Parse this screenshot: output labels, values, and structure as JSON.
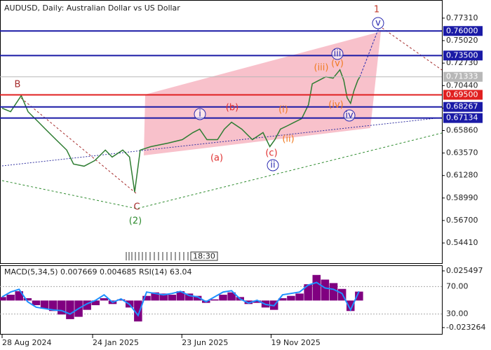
{
  "chart_data": [
    {
      "type": "line",
      "title": "AUDUSD, Daily:  Australian Dollar vs US Dollar",
      "color": "#2e7d32",
      "x": [
        0,
        2,
        4.5,
        6.1,
        8.6,
        10.2,
        12.7,
        15.2,
        16.8,
        19.3,
        21.8,
        24.3,
        25.9,
        28.4,
        30,
        31.2,
        32.5,
        35,
        39.1,
        42.4,
        44.9,
        46.5,
        48.2,
        50.7,
        52.3,
        54,
        56.4,
        58.9,
        61.4,
        63,
        64.2,
        65.5,
        67.2,
        68.8,
        70.5,
        72.1,
        73,
        74.6,
        76.2,
        77.9,
        79.5,
        80.4,
        81.2,
        82,
        82.8,
        83.7,
        84.2
      ],
      "values": [
        0.6814,
        0.6778,
        0.6942,
        0.6778,
        0.6671,
        0.66,
        0.6493,
        0.6387,
        0.6245,
        0.6223,
        0.628,
        0.6387,
        0.6316,
        0.6387,
        0.6316,
        0.596,
        0.6387,
        0.6422,
        0.6458,
        0.6493,
        0.6565,
        0.66,
        0.6493,
        0.6493,
        0.66,
        0.6671,
        0.66,
        0.6493,
        0.6565,
        0.6422,
        0.6493,
        0.66,
        0.6636,
        0.6671,
        0.6707,
        0.6849,
        0.7062,
        0.7098,
        0.7134,
        0.7119,
        0.7205,
        0.7098,
        0.692,
        0.6863,
        0.6991,
        0.7098,
        0.7134
      ],
      "xlim": [
        0,
        103.5
      ],
      "xticks": [
        {
          "value": 0,
          "label": "28 Aug 2024"
        },
        {
          "value": 21.3,
          "label": "24 Jan 2025"
        },
        {
          "value": 42.3,
          "label": "23 Jun 2025"
        },
        {
          "value": 63.3,
          "label": "19 Nov 2025"
        }
      ],
      "ylim": [
        0.5242,
        0.788
      ],
      "yticks": [
        {
          "value": 0.7731,
          "label": "0.77310"
        },
        {
          "value": 0.7502,
          "label": "0.75020"
        },
        {
          "value": 0.7273,
          "label": "0.72730"
        },
        {
          "value": 0.7044,
          "label": "0.70440"
        },
        {
          "value": 0.6815,
          "label": "0.68150"
        },
        {
          "value": 0.6586,
          "label": "0.65860"
        },
        {
          "value": 0.6357,
          "label": "0.63570"
        },
        {
          "value": 0.6128,
          "label": "0.61280"
        },
        {
          "value": 0.5899,
          "label": "0.58990"
        },
        {
          "value": 0.567,
          "label": "0.56700"
        },
        {
          "value": 0.5441,
          "label": "0.54410"
        }
      ],
      "levels": [
        {
          "value": 0.76,
          "label": "0.76000",
          "color": "#1a1aa6"
        },
        {
          "value": 0.735,
          "label": "0.73500",
          "color": "#1a1aa6"
        },
        {
          "value": 0.71333,
          "label": "0.71333",
          "color": "#b8b8b8"
        },
        {
          "value": 0.695,
          "label": "0.69500",
          "color": "#e02020"
        },
        {
          "value": 0.68267,
          "label": "0.68267",
          "color": "#1a1aa6"
        },
        {
          "value": 0.67134,
          "label": "0.67134",
          "color": "#1a1aa6"
        }
      ],
      "annotations": [
        {
          "text": "1",
          "color": "#c0392b",
          "circled": false
        },
        {
          "text": "B",
          "color": "#a52a2a",
          "circled": false
        },
        {
          "text": "C",
          "color": "#a52a2a",
          "circled": false
        },
        {
          "text": "(2)",
          "color": "#2e8b2e",
          "circled": false
        },
        {
          "text": "i",
          "color": "#2a2ab0",
          "circled": true
        },
        {
          "text": "ii",
          "color": "#2a2ab0",
          "circled": true
        },
        {
          "text": "iii",
          "color": "#2a2ab0",
          "circled": true
        },
        {
          "text": "iv",
          "color": "#2a2ab0",
          "circled": true
        },
        {
          "text": "v",
          "color": "#2a2ab0",
          "circled": true
        },
        {
          "text": "(a)",
          "color": "#e03030",
          "circled": false
        },
        {
          "text": "(b)",
          "color": "#e03030",
          "circled": false
        },
        {
          "text": "(c)",
          "color": "#e03030",
          "circled": false
        },
        {
          "text": "(i)",
          "color": "#f07a20",
          "circled": false
        },
        {
          "text": "(ii)",
          "color": "#f07a20",
          "circled": false
        },
        {
          "text": "(iii)",
          "color": "#f07a20",
          "circled": false
        },
        {
          "text": "(iv)",
          "color": "#f07a20",
          "circled": false
        },
        {
          "text": "(v)",
          "color": "#f07a20",
          "circled": false
        }
      ],
      "time_box": "18:30"
    },
    {
      "type": "macd",
      "title": "MACD(5,34,5) 0.007669 0.004685 RSI(14) 63.04",
      "x": [
        0,
        2,
        4,
        6,
        8,
        10,
        12,
        14,
        16,
        18,
        20,
        22,
        24,
        26,
        28,
        30,
        32,
        34,
        36,
        38,
        40,
        42,
        44,
        46,
        48,
        50,
        52,
        54,
        56,
        58,
        60,
        62,
        64,
        66,
        68,
        70,
        72,
        74,
        76,
        78,
        80,
        82,
        84
      ],
      "xlim": [
        0,
        103.5
      ],
      "histogram": {
        "color": "#800080",
        "values": [
          0.003,
          0.005,
          0.008,
          0.002,
          -0.004,
          -0.007,
          -0.009,
          -0.012,
          -0.016,
          -0.014,
          -0.008,
          -0.004,
          0.002,
          -0.003,
          0.001,
          -0.006,
          -0.018,
          0.004,
          0.007,
          0.006,
          0.005,
          0.008,
          0.006,
          0.004,
          -0.002,
          0.001,
          0.005,
          0.007,
          0.003,
          -0.003,
          -0.002,
          -0.006,
          -0.008,
          0.002,
          0.004,
          0.006,
          0.014,
          0.022,
          0.018,
          0.015,
          0.01,
          -0.009,
          0.007669
        ]
      },
      "ylim": [
        -0.0293,
        0.0297
      ],
      "yticks": [
        0.025497,
        -0.023264
      ],
      "rsi": {
        "color": "#1e90ff",
        "values": [
          55,
          62,
          66,
          48,
          40,
          38,
          36,
          35,
          30,
          38,
          45,
          50,
          58,
          47,
          52,
          44,
          28,
          62,
          60,
          58,
          60,
          63,
          57,
          55,
          48,
          55,
          62,
          64,
          52,
          46,
          50,
          44,
          42,
          58,
          60,
          62,
          72,
          76,
          68,
          66,
          60,
          36,
          63.04
        ],
        "ylim": [
          0,
          100
        ],
        "levels": [
          {
            "value": 70,
            "label": "70.00"
          },
          {
            "value": 30,
            "label": "30.00"
          }
        ]
      }
    }
  ]
}
